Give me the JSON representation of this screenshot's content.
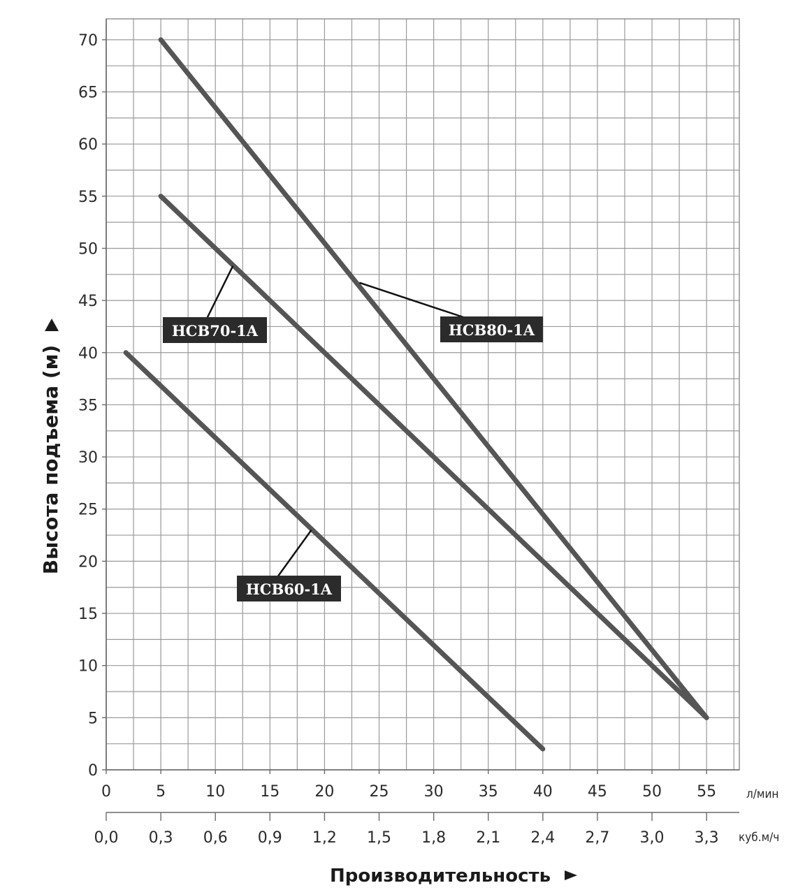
{
  "chart_data": {
    "type": "line",
    "title": "",
    "xlabel": "Производительность",
    "ylabel": "Высота подъема (м)",
    "x_unit_primary": "л/мин",
    "x_unit_secondary": "куб.м/ч",
    "xlim": [
      0,
      58
    ],
    "ylim": [
      0,
      72
    ],
    "x_ticks": [
      0,
      5,
      10,
      15,
      20,
      25,
      30,
      35,
      40,
      45,
      50,
      55
    ],
    "x_tick_labels": [
      "0",
      "5",
      "10",
      "15",
      "20",
      "25",
      "30",
      "35",
      "40",
      "45",
      "50",
      "55"
    ],
    "x2_ticks": [
      0,
      5,
      10,
      15,
      20,
      25,
      30,
      35,
      40,
      45,
      50,
      55
    ],
    "x2_tick_labels": [
      "0,0",
      "0,3",
      "0,6",
      "0,9",
      "1,2",
      "1,5",
      "1,8",
      "2,1",
      "2,4",
      "2,7",
      "3,0",
      "3,3"
    ],
    "y_ticks": [
      0,
      5,
      10,
      15,
      20,
      25,
      30,
      35,
      40,
      45,
      50,
      55,
      60,
      65,
      70
    ],
    "y_tick_labels": [
      "0",
      "5",
      "10",
      "15",
      "20",
      "25",
      "30",
      "35",
      "40",
      "45",
      "50",
      "55",
      "60",
      "65",
      "70"
    ],
    "grid": true,
    "series": [
      {
        "name": "HCB80-1A",
        "x": [
          5,
          55
        ],
        "y": [
          70,
          5
        ]
      },
      {
        "name": "HCB70-1A",
        "x": [
          5,
          55
        ],
        "y": [
          55,
          5
        ]
      },
      {
        "name": "HCB60-1A",
        "x": [
          1.8,
          40
        ],
        "y": [
          40,
          2
        ]
      }
    ]
  }
}
